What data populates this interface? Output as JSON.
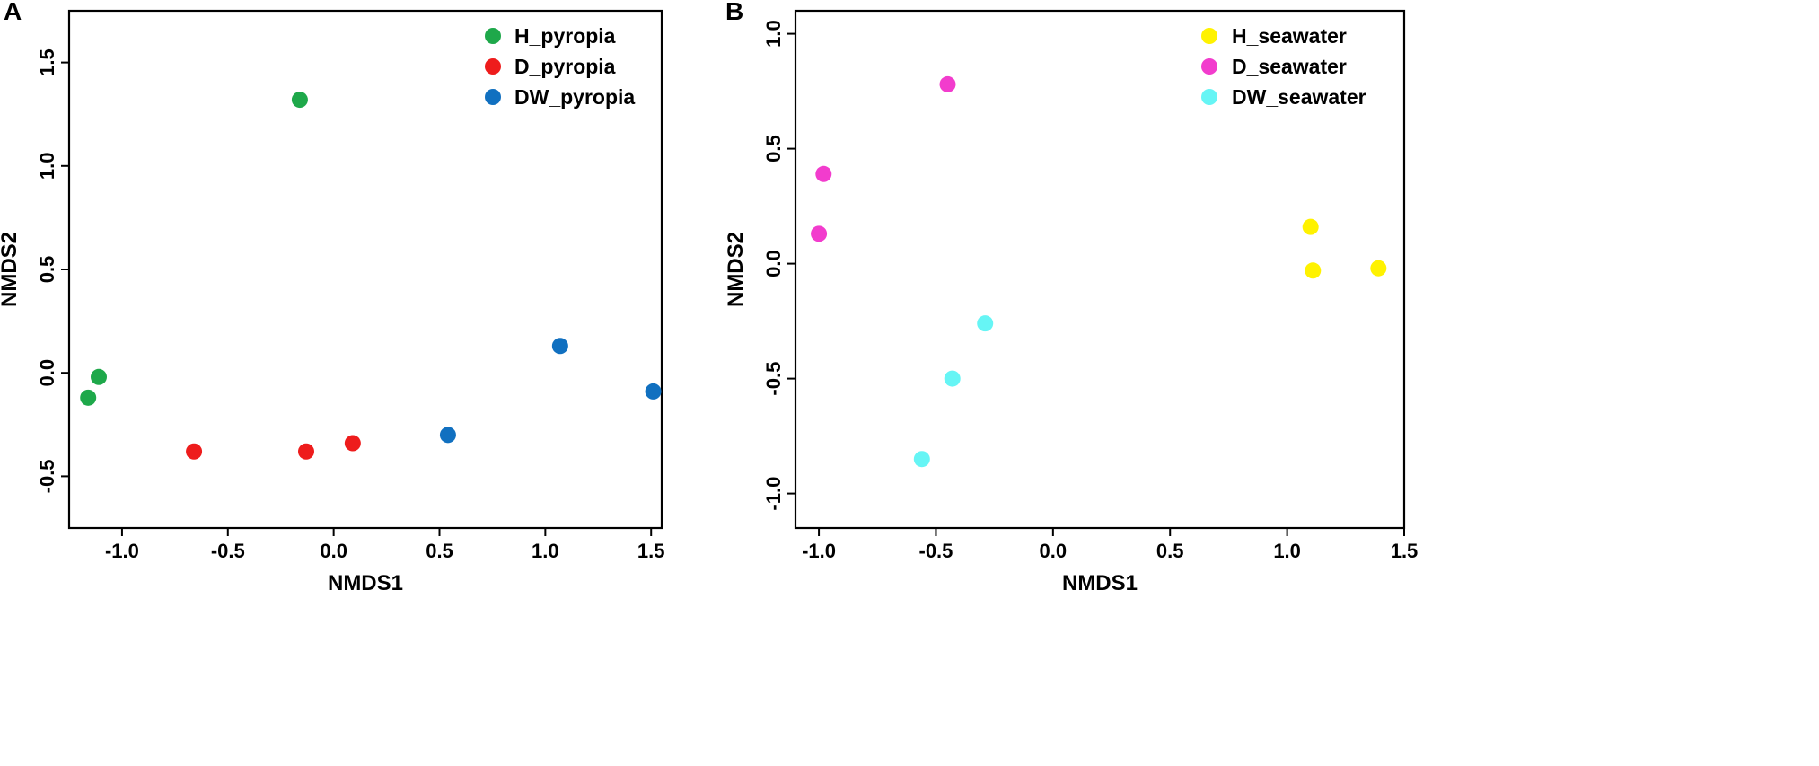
{
  "chart_data": [
    {
      "type": "scatter",
      "panel_label": "A",
      "title": "",
      "xlabel": "NMDS1",
      "ylabel": "NMDS2",
      "xlim": [
        -1.25,
        1.55
      ],
      "ylim": [
        -0.75,
        1.75
      ],
      "xticks": [
        "-1.0",
        "-0.5",
        "0.0",
        "0.5",
        "1.0",
        "1.5"
      ],
      "xtick_values": [
        -1.0,
        -0.5,
        0.0,
        0.5,
        1.0,
        1.5
      ],
      "yticks": [
        "-0.5",
        "0.0",
        "0.5",
        "1.0",
        "1.5"
      ],
      "ytick_values": [
        -0.5,
        0.0,
        0.5,
        1.0,
        1.5
      ],
      "grid": false,
      "legend_position": "top-right",
      "series": [
        {
          "name": "H_pyropia",
          "color": "#1ea84a",
          "points": [
            [
              -0.16,
              1.32
            ],
            [
              -1.11,
              -0.02
            ],
            [
              -1.16,
              -0.12
            ]
          ]
        },
        {
          "name": "D_pyropia",
          "color": "#ee1c1c",
          "points": [
            [
              -0.66,
              -0.38
            ],
            [
              -0.13,
              -0.38
            ],
            [
              0.09,
              -0.34
            ]
          ]
        },
        {
          "name": "DW_pyropia",
          "color": "#1170c0",
          "points": [
            [
              1.07,
              0.13
            ],
            [
              1.51,
              -0.09
            ],
            [
              0.54,
              -0.3
            ]
          ]
        }
      ]
    },
    {
      "type": "scatter",
      "panel_label": "B",
      "title": "",
      "xlabel": "NMDS1",
      "ylabel": "NMDS2",
      "xlim": [
        -1.1,
        1.5
      ],
      "ylim": [
        -1.15,
        1.1
      ],
      "xticks": [
        "-1.0",
        "-0.5",
        "0.0",
        "0.5",
        "1.0",
        "1.5"
      ],
      "xtick_values": [
        -1.0,
        -0.5,
        0.0,
        0.5,
        1.0,
        1.5
      ],
      "yticks": [
        "-1.0",
        "-0.5",
        "0.0",
        "0.5",
        "1.0"
      ],
      "ytick_values": [
        -1.0,
        -0.5,
        0.0,
        0.5,
        1.0
      ],
      "grid": false,
      "legend_position": "top-right",
      "series": [
        {
          "name": "H_seawater",
          "color": "#fff200",
          "points": [
            [
              1.1,
              0.16
            ],
            [
              1.11,
              -0.03
            ],
            [
              1.39,
              -0.02
            ]
          ]
        },
        {
          "name": "D_seawater",
          "color": "#f23ccd",
          "points": [
            [
              -0.45,
              0.78
            ],
            [
              -0.98,
              0.39
            ],
            [
              -1.0,
              0.13
            ]
          ]
        },
        {
          "name": "DW_seawater",
          "color": "#66f5f5",
          "points": [
            [
              -0.29,
              -0.26
            ],
            [
              -0.43,
              -0.5
            ],
            [
              -0.56,
              -0.85
            ]
          ]
        }
      ]
    }
  ]
}
